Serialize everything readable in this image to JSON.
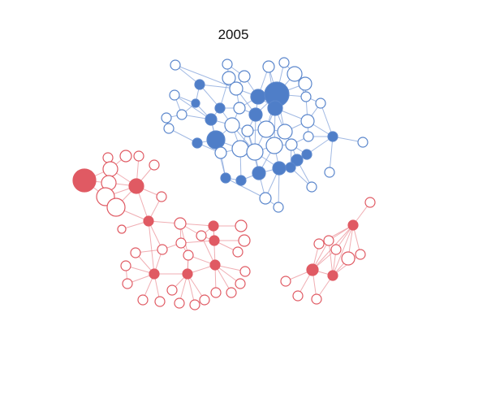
{
  "title": "2005",
  "colors": {
    "blue_fill": "#4f7ec8",
    "blue_stroke": "#5a86cc",
    "blue_edge": "#8aa8dc",
    "red_fill": "#e05a63",
    "red_stroke": "#e05a63",
    "red_edge": "#ec9aa0",
    "hollow_fill": "#ffffff"
  }
}
